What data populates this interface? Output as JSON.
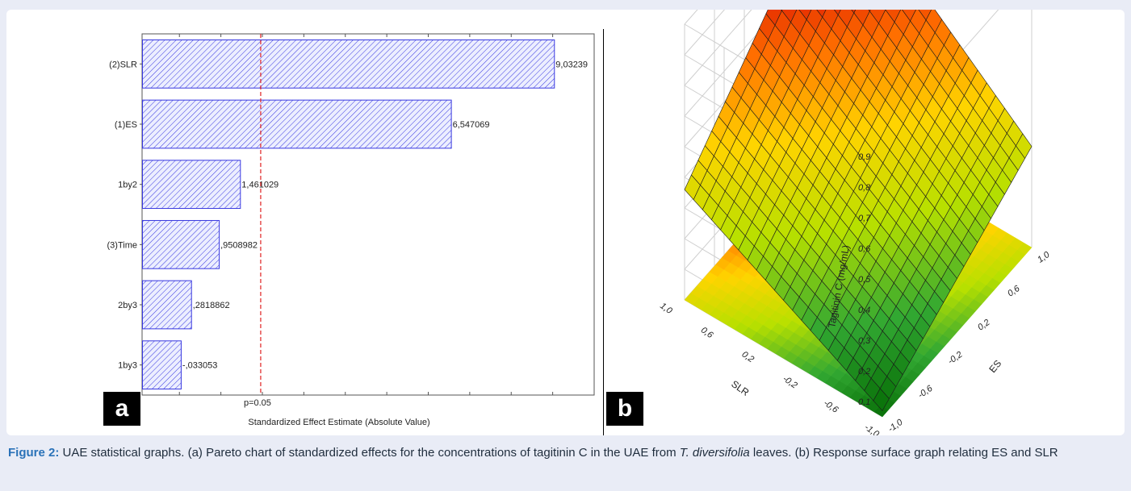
{
  "figure": {
    "label": "Figure 2:",
    "caption_part1": " UAE statistical graphs. (a) Pareto chart of standardized effects for the concentrations of tagitinin C in the UAE from ",
    "caption_italic": "T. diversifolia",
    "caption_part2": " leaves. (b) Response surface graph relating ES and SLR",
    "panel_a_badge": "a",
    "panel_b_badge": "b"
  },
  "chart_data": [
    {
      "type": "bar",
      "orientation": "horizontal",
      "categories": [
        "(2)SLR",
        "(1)ES",
        "1by2",
        "(3)Time",
        "2by3",
        "1by3"
      ],
      "values": [
        9.03239,
        6.547069,
        1.461029,
        0.9508982,
        0.2818862,
        -0.033053
      ],
      "value_labels": [
        "9,03239",
        "6,547069",
        "1,461029",
        ",9508982",
        ",2818862",
        "-,033053"
      ],
      "xlabel": "Standardized Effect Estimate (Absolute Value)",
      "xlim": [
        -0.9,
        10
      ],
      "reference_line": {
        "label": "p=0.05",
        "value": 1.96
      },
      "bar_color": "#3838e0"
    },
    {
      "type": "surface",
      "zlabel": "Tagitinin C (mg/mL)",
      "xlabel": "ES",
      "ylabel": "SLR",
      "z_ticks": [
        "0,1",
        "0,2",
        "0,3",
        "0,4",
        "0,5",
        "0,6",
        "0,7",
        "0,8",
        "0,9"
      ],
      "es_ticks": [
        "-1,0",
        "-0,6",
        "-0,2",
        "0,2",
        "0,6",
        "1,0"
      ],
      "slr_ticks": [
        "-1,0",
        "-0,6",
        "-0,2",
        "0,2",
        "0,6",
        "1,0"
      ],
      "corners_z": {
        "es_min_slr_min": 0.07,
        "es_max_slr_min": 0.38,
        "es_min_slr_max": 0.41,
        "es_max_slr_max": 0.91
      },
      "colormap": [
        "#006400",
        "#32a832",
        "#b8e000",
        "#ffd400",
        "#ff6e00",
        "#d40000",
        "#7a0000"
      ]
    }
  ]
}
